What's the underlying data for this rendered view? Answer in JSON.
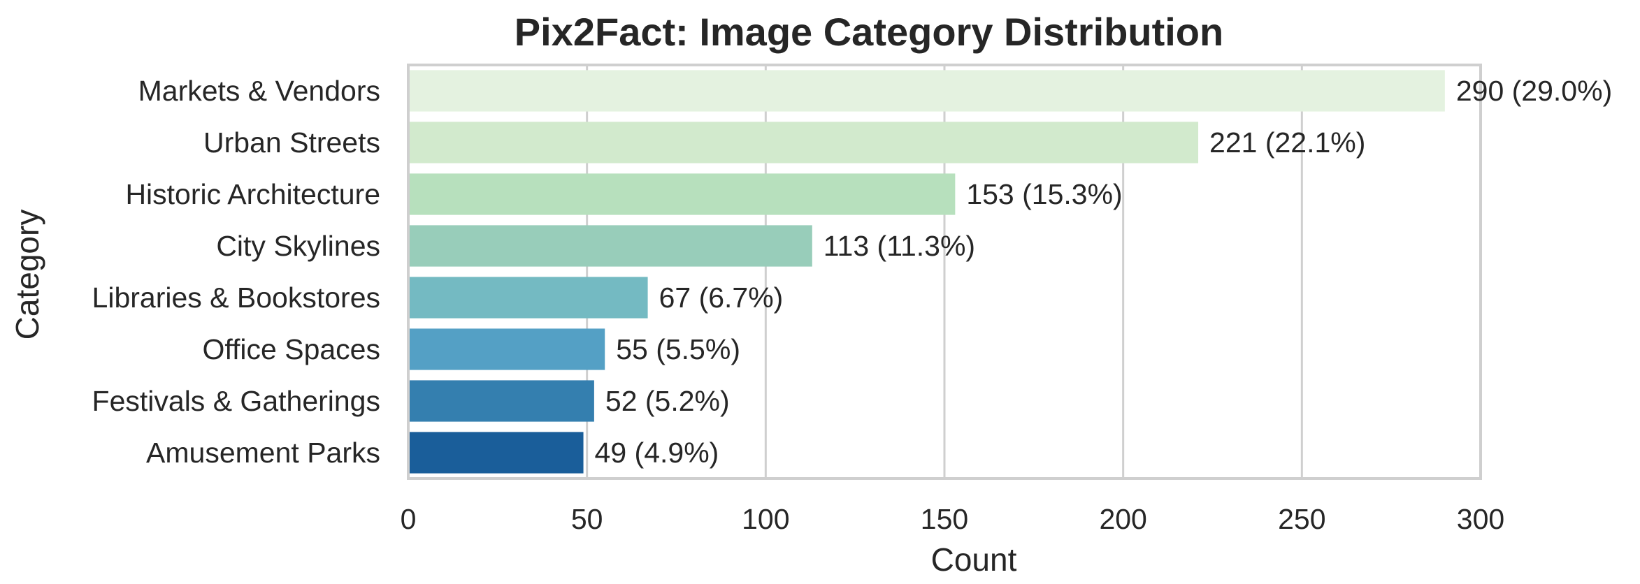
{
  "chart_data": {
    "type": "bar",
    "orientation": "horizontal",
    "title": "Pix2Fact: Image Category Distribution",
    "xlabel": "Count",
    "ylabel": "Category",
    "xlim": [
      0,
      300
    ],
    "xticks": [
      0,
      50,
      100,
      150,
      200,
      250,
      300
    ],
    "grid": "vertical",
    "categories": [
      "Markets & Vendors",
      "Urban Streets",
      "Historic Architecture",
      "City Skylines",
      "Libraries & Bookstores",
      "Office Spaces",
      "Festivals & Gatherings",
      "Amusement Parks"
    ],
    "values": [
      290,
      221,
      153,
      113,
      67,
      55,
      52,
      49
    ],
    "data_labels": [
      "290 (29.0%)",
      "221 (22.1%)",
      "153 (15.3%)",
      "113 (11.3%)",
      "67 (6.7%)",
      "55 (5.5%)",
      "52 (5.2%)",
      "49 (4.9%)"
    ],
    "colors": [
      "#e4f2e0",
      "#d2eacd",
      "#b7e0bd",
      "#98cdba",
      "#74bac2",
      "#54a0c5",
      "#347faf",
      "#1a5e9a"
    ],
    "grid_color": "#cfcfcf",
    "frame_color": "#cfcfcf"
  }
}
